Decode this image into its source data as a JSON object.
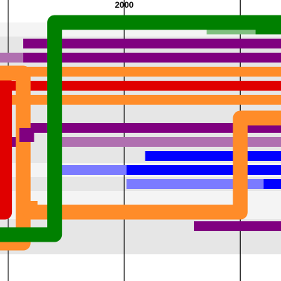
{
  "chart_data": {
    "type": "timeline",
    "x_axis": {
      "unit": "year",
      "visible_range": [
        1989.3,
        2013.5
      ],
      "gridline_years": [
        1990,
        2000,
        2010
      ],
      "tick_labels": [
        {
          "year": 2000,
          "text": "2000"
        }
      ]
    },
    "colors": {
      "green": "#008000",
      "light_green": "#80c080",
      "purple": "#800080",
      "light_purple": "#b070b0",
      "orange": "#ff8c29",
      "red": "#e00000",
      "blue": "#0000ff",
      "light_blue": "#7b7bff",
      "band_a": "#f4f4f4",
      "band_b": "#e6e6e6",
      "gridline": "#000000"
    },
    "bands": [
      {
        "color": "band_a",
        "values": [
          0.5,
          1.5
        ]
      },
      {
        "color": "band_b",
        "values": [
          1.5,
          10.5
        ]
      },
      {
        "color": "band_a",
        "values": [
          10.5,
          11.5
        ]
      },
      {
        "color": "band_b",
        "values": [
          11.5,
          12.5
        ]
      },
      {
        "color": "band_a",
        "values": [
          12.5,
          14.5
        ]
      },
      {
        "color": "band_b",
        "values": [
          14.5,
          17.0
        ]
      }
    ],
    "segments": [
      {
        "color": "light_green",
        "start": 2007.1,
        "end": 2011.3,
        "row": 1,
        "weight": 1.0
      },
      {
        "color": "green",
        "start": 2011.3,
        "end": 2013.5,
        "row": 1,
        "weight": 1.0
      },
      {
        "color": "purple",
        "start": 1991.3,
        "end": 2013.5,
        "row": 2,
        "weight": 1.0
      },
      {
        "color": "light_purple",
        "start": 1989.3,
        "end": 1991.3,
        "row": 3,
        "weight": 1.0
      },
      {
        "color": "purple",
        "start": 1991.3,
        "end": 2013.5,
        "row": 3,
        "weight": 1.0
      },
      {
        "color": "orange",
        "start": 1991.3,
        "end": 2013.5,
        "row": 4,
        "weight": 1.0
      },
      {
        "color": "red",
        "start": 1989.3,
        "end": 2013.5,
        "row": 5,
        "weight": 1.0
      },
      {
        "color": "orange",
        "start": 1989.3,
        "end": 2013.5,
        "row": 6,
        "weight": 1.0
      },
      {
        "color": "purple",
        "start": 1991.4,
        "end": 2013.5,
        "row": 8,
        "weight": 1.0
      },
      {
        "color": "purple",
        "start": 1989.3,
        "end": 1991.4,
        "row": 9,
        "weight": 1.0
      },
      {
        "color": "light_purple",
        "start": 1994.5,
        "end": 2013.5,
        "row": 9,
        "weight": 1.0
      },
      {
        "color": "blue",
        "start": 2001.8,
        "end": 2013.5,
        "row": 10,
        "weight": 1.0
      },
      {
        "color": "light_blue",
        "start": 1994.5,
        "end": 2000.2,
        "row": 11,
        "weight": 1.0
      },
      {
        "color": "blue",
        "start": 2000.2,
        "end": 2013.5,
        "row": 11,
        "weight": 1.0
      },
      {
        "color": "light_blue",
        "start": 2000.2,
        "end": 2012.0,
        "row": 12,
        "weight": 1.0
      },
      {
        "color": "blue",
        "start": 2012.0,
        "end": 2013.5,
        "row": 12,
        "weight": 1.0
      },
      {
        "color": "purple",
        "start": 2006.0,
        "end": 2013.5,
        "row": 15,
        "weight": 1.0
      }
    ],
    "connectors": [
      {
        "color": "red",
        "points": [
          [
            1989.3,
            4.8
          ],
          [
            1989.7,
            4.8
          ],
          [
            1989.7,
            14.0
          ],
          [
            1989.3,
            14.0
          ]
        ],
        "weight": 1.5
      },
      {
        "color": "orange",
        "points": [
          [
            1989.3,
            4.1
          ],
          [
            1991.3,
            4.1
          ],
          [
            1991.3,
            5.0
          ],
          [
            1991.3,
            16.2
          ],
          [
            1989.3,
            16.2
          ]
        ],
        "weight": 1.5
      },
      {
        "color": "orange",
        "points": [
          [
            1991.9,
            13.2
          ],
          [
            1991.9,
            14.0
          ],
          [
            2010.0,
            14.0
          ],
          [
            2010.0,
            7.3
          ],
          [
            2013.5,
            7.3
          ]
        ],
        "weight": 1.5
      },
      {
        "color": "purple",
        "points": [
          [
            1991.6,
            9.0
          ],
          [
            1991.6,
            8.0
          ]
        ],
        "weight": 1.5
      },
      {
        "color": "green",
        "points": [
          [
            1989.3,
            15.6
          ],
          [
            1994.0,
            15.6
          ],
          [
            1994.0,
            0.5
          ],
          [
            2013.5,
            0.5
          ]
        ],
        "weight": 1.5
      }
    ]
  }
}
